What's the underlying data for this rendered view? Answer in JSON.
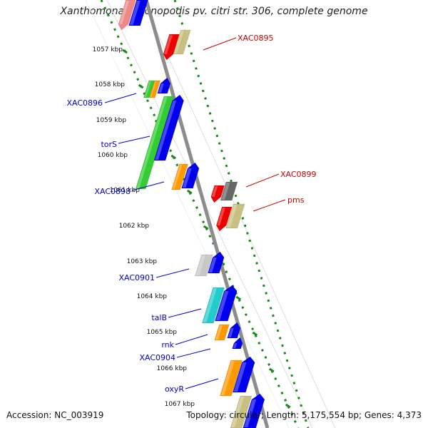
{
  "title": "Xanthomonas axonopodis pv. citri str. 306, complete genome",
  "accession": "Accession: NC_003919",
  "topology": "Topology: circular; Length: 5,175,554 bp; Genes: 4,373",
  "colors": {
    "forward_label": "#cc0000",
    "reverse_label": "#0000cc",
    "backbone": "#8c8c8c",
    "ruler_ticks": "#1a8a1a",
    "gene_red": "#ee0000",
    "gene_khaki": "#c8c080",
    "gene_blue": "#0000ee",
    "gene_orange": "#ff9900",
    "gene_green": "#33cc33",
    "gene_gray": "#666666",
    "gene_lightgray": "#c8c8c8",
    "gene_cyan": "#22cccc",
    "gene_pink": "#ee8888"
  },
  "ruler": [
    "1057 kbp",
    "1058 kbp",
    "1059 kbp",
    "1060 kbp",
    "1061 kbp",
    "1062 kbp",
    "1063 kbp",
    "1064 kbp",
    "1065 kbp",
    "1066 kbp",
    "1067 kbp"
  ],
  "labels": {
    "forward": [
      "XAC0895",
      "XAC0899",
      "pms"
    ],
    "reverse": [
      "XAC0896",
      "torS",
      "XAC0898",
      "XAC0901",
      "talB",
      "rnk",
      "XAC0904",
      "oxyR"
    ]
  }
}
